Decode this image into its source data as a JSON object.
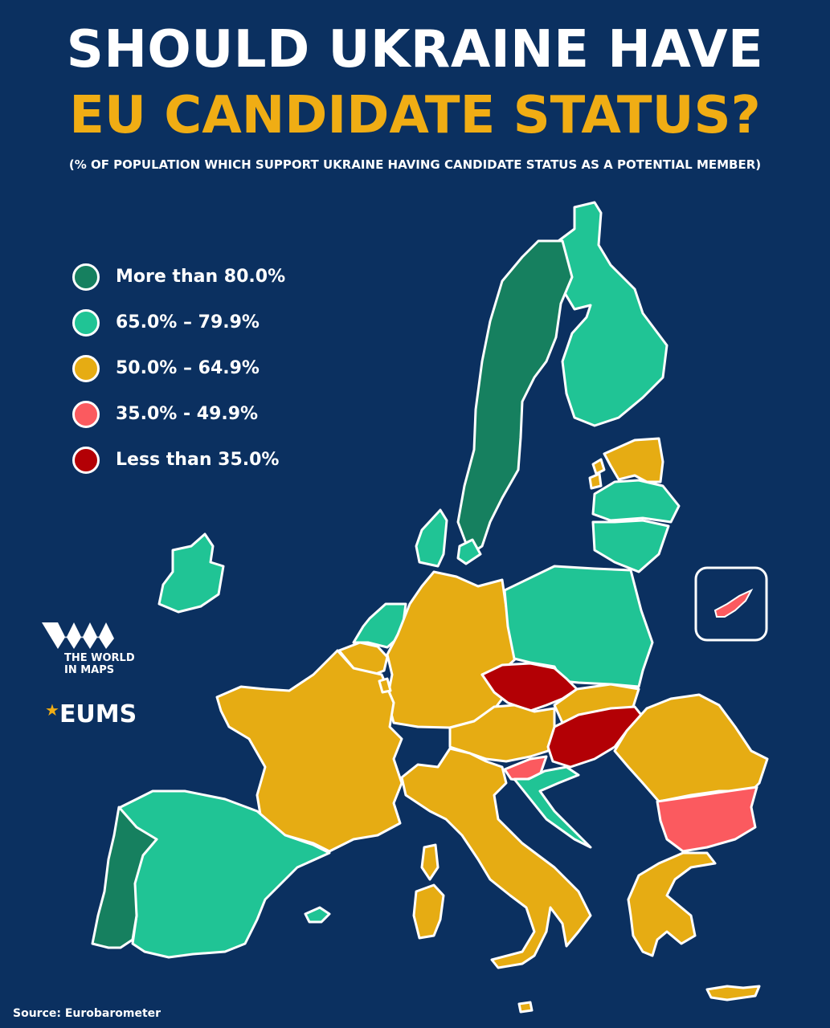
{
  "title_line1": "SHOULD UKRAINE HAVE",
  "title_line2": "EU CANDIDATE STATUS?",
  "subtitle": "(% OF POPULATION WHICH SUPPORT UKRAINE HAVING CANDIDATE STATUS AS A POTENTIAL MEMBER)",
  "legend": [
    {
      "label": "More than 80.0%",
      "color": "#16805f"
    },
    {
      "label": "65.0% – 79.9%",
      "color": "#20c495"
    },
    {
      "label": "50.0% – 64.9%",
      "color": "#e6ac13"
    },
    {
      "label": "35.0% - 49.9%",
      "color": "#fb5a5f"
    },
    {
      "label": "Less than 35.0%",
      "color": "#b30005"
    }
  ],
  "countries": [
    {
      "name": "Sweden",
      "class": "More than 80.0%"
    },
    {
      "name": "Portugal",
      "class": "More than 80.0%"
    },
    {
      "name": "Finland",
      "class": "65.0% – 79.9%"
    },
    {
      "name": "Ireland",
      "class": "65.0% – 79.9%"
    },
    {
      "name": "Denmark",
      "class": "65.0% – 79.9%"
    },
    {
      "name": "Netherlands",
      "class": "65.0% – 79.9%"
    },
    {
      "name": "Poland",
      "class": "65.0% – 79.9%"
    },
    {
      "name": "Lithuania",
      "class": "65.0% – 79.9%"
    },
    {
      "name": "Latvia",
      "class": "65.0% – 79.9%"
    },
    {
      "name": "Spain",
      "class": "65.0% – 79.9%"
    },
    {
      "name": "Croatia",
      "class": "65.0% – 79.9%"
    },
    {
      "name": "Estonia",
      "class": "50.0% – 64.9%"
    },
    {
      "name": "Germany",
      "class": "50.0% – 64.9%"
    },
    {
      "name": "Belgium",
      "class": "50.0% – 64.9%"
    },
    {
      "name": "Luxembourg",
      "class": "50.0% – 64.9%"
    },
    {
      "name": "France",
      "class": "50.0% – 64.9%"
    },
    {
      "name": "Italy",
      "class": "50.0% – 64.9%"
    },
    {
      "name": "Austria",
      "class": "50.0% – 64.9%"
    },
    {
      "name": "Slovakia",
      "class": "50.0% – 64.9%"
    },
    {
      "name": "Romania",
      "class": "50.0% – 64.9%"
    },
    {
      "name": "Greece",
      "class": "50.0% – 64.9%"
    },
    {
      "name": "Malta",
      "class": "50.0% – 64.9%"
    },
    {
      "name": "Slovenia",
      "class": "35.0% - 49.9%"
    },
    {
      "name": "Bulgaria",
      "class": "35.0% - 49.9%"
    },
    {
      "name": "Cyprus",
      "class": "35.0% - 49.9%"
    },
    {
      "name": "Czechia",
      "class": "Less than 35.0%"
    },
    {
      "name": "Hungary",
      "class": "Less than 35.0%"
    }
  ],
  "logo_text": "THE WORLD IN MAPS",
  "eums_text": "EUMS",
  "source": "Source: Eurobarometer"
}
